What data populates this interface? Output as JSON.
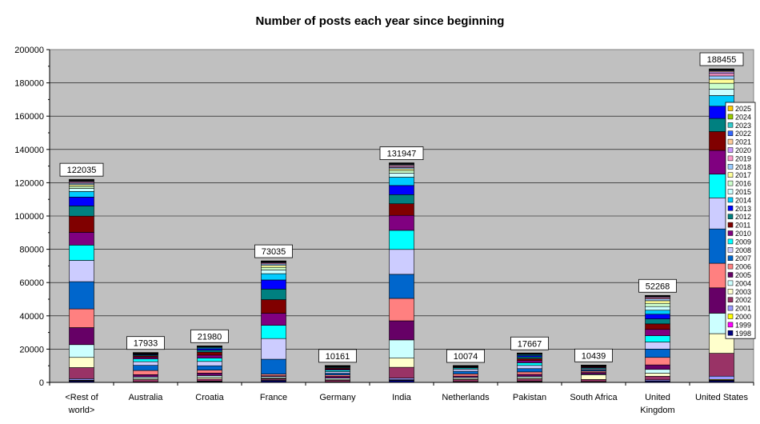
{
  "chart_data": {
    "type": "bar",
    "stacked": true,
    "title": "Number of posts each year since beginning",
    "xlabel": "",
    "ylabel": "",
    "ylim": [
      0,
      200000
    ],
    "yticks": [
      "0",
      "20000",
      "40000",
      "60000",
      "80000",
      "100000",
      "120000",
      "140000",
      "160000",
      "180000",
      "200000"
    ],
    "grid": true,
    "legend_position": "right",
    "categories": [
      "<Rest of world>",
      "Australia",
      "Croatia",
      "France",
      "Germany",
      "India",
      "Netherlands",
      "Pakistan",
      "South Africa",
      "United Kingdom",
      "United States"
    ],
    "category_lines": [
      [
        "<Rest of",
        "world>"
      ],
      [
        "Australia"
      ],
      [
        "Croatia"
      ],
      [
        "France"
      ],
      [
        "Germany"
      ],
      [
        "India"
      ],
      [
        "Netherlands"
      ],
      [
        "Pakistan"
      ],
      [
        "South Africa"
      ],
      [
        "United",
        "Kingdom"
      ],
      [
        "United States"
      ]
    ],
    "totals": [
      122035,
      17933,
      21980,
      73035,
      10161,
      131947,
      10074,
      17667,
      10439,
      52268,
      188455
    ],
    "total_labels": [
      "122035",
      "17933",
      "21980",
      "73035",
      "10161",
      "131947",
      "10074",
      "17667",
      "10439",
      "52268",
      "188455"
    ],
    "series_names": [
      "1998",
      "1999",
      "2000",
      "2001",
      "2002",
      "2003",
      "2004",
      "2005",
      "2006",
      "2007",
      "2008",
      "2009",
      "2010",
      "2011",
      "2012",
      "2013",
      "2014",
      "2015",
      "2016",
      "2017",
      "2018",
      "2019",
      "2020",
      "2021",
      "2022",
      "2023",
      "2024",
      "2025"
    ],
    "series_colors": [
      "#000080",
      "#ff00ff",
      "#ffff00",
      "#9999ff",
      "#993366",
      "#ffffcc",
      "#ccffff",
      "#660066",
      "#ff8080",
      "#0066cc",
      "#ccccff",
      "#00ffff",
      "#800080",
      "#800000",
      "#008080",
      "#0000ff",
      "#00ccff",
      "#ccffff",
      "#ccffcc",
      "#ffff99",
      "#99ccff",
      "#ff99cc",
      "#cc99ff",
      "#ffcc99",
      "#3366ff",
      "#33cccc",
      "#99cc00",
      "#ffcc00"
    ],
    "values": [
      [
        800,
        200,
        300,
        900,
        6500,
        6000,
        7500,
        10000,
        11000,
        16000,
        12500,
        9000,
        7500,
        9500,
        6000,
        5200,
        3300,
        1800,
        1200,
        1000,
        800,
        600,
        500,
        400,
        300,
        200,
        200,
        135
      ],
      [
        200,
        0,
        0,
        150,
        1300,
        700,
        900,
        1400,
        2500,
        3100,
        2200,
        1700,
        1000,
        800,
        550,
        400,
        300,
        200,
        150,
        100,
        80,
        50,
        40,
        30,
        30,
        20,
        20,
        13
      ],
      [
        500,
        0,
        0,
        300,
        1300,
        1000,
        1000,
        1500,
        1800,
        2600,
        2600,
        2000,
        1800,
        1800,
        1200,
        900,
        700,
        350,
        200,
        150,
        80,
        60,
        40,
        30,
        30,
        20,
        10,
        10
      ],
      [
        1000,
        0,
        0,
        400,
        800,
        500,
        800,
        500,
        1000,
        9000,
        12500,
        8000,
        7300,
        8200,
        6400,
        5500,
        3800,
        2300,
        1500,
        1200,
        900,
        600,
        400,
        300,
        200,
        150,
        100,
        85
      ],
      [
        200,
        0,
        0,
        100,
        1000,
        500,
        800,
        1000,
        900,
        1000,
        1000,
        900,
        600,
        600,
        500,
        300,
        200,
        150,
        100,
        80,
        60,
        50,
        30,
        20,
        20,
        10,
        10,
        11
      ],
      [
        1200,
        200,
        200,
        1000,
        6500,
        5500,
        11000,
        11500,
        13500,
        14500,
        15000,
        11500,
        9000,
        7000,
        5500,
        5500,
        5000,
        2500,
        1500,
        1000,
        800,
        700,
        600,
        500,
        400,
        300,
        200,
        147
      ],
      [
        300,
        0,
        0,
        200,
        1200,
        600,
        700,
        800,
        1300,
        1600,
        1300,
        700,
        400,
        300,
        200,
        150,
        80,
        60,
        40,
        30,
        24,
        20,
        20,
        20,
        10,
        10,
        5,
        5
      ],
      [
        400,
        0,
        0,
        300,
        1300,
        700,
        900,
        1200,
        1500,
        2000,
        1900,
        1600,
        1300,
        1200,
        1000,
        800,
        600,
        300,
        200,
        150,
        100,
        80,
        60,
        40,
        20,
        10,
        5,
        2
      ],
      [
        300,
        0,
        0,
        200,
        1200,
        2700,
        400,
        1000,
        800,
        700,
        600,
        500,
        400,
        400,
        300,
        200,
        150,
        100,
        60,
        40,
        30,
        20,
        15,
        10,
        5,
        5,
        2,
        2
      ],
      [
        800,
        0,
        0,
        700,
        2200,
        1800,
        2300,
        2700,
        4500,
        5000,
        4200,
        3800,
        3800,
        3300,
        3000,
        2800,
        2400,
        2200,
        1900,
        1600,
        1100,
        800,
        500,
        300,
        200,
        100,
        100,
        68
      ],
      [
        1000,
        300,
        500,
        2000,
        14000,
        12000,
        12500,
        15500,
        15000,
        21000,
        19000,
        14500,
        14500,
        11500,
        8000,
        7500,
        6500,
        4000,
        3500,
        2500,
        2000,
        1500,
        1000,
        600,
        400,
        300,
        300,
        255
      ]
    ]
  }
}
